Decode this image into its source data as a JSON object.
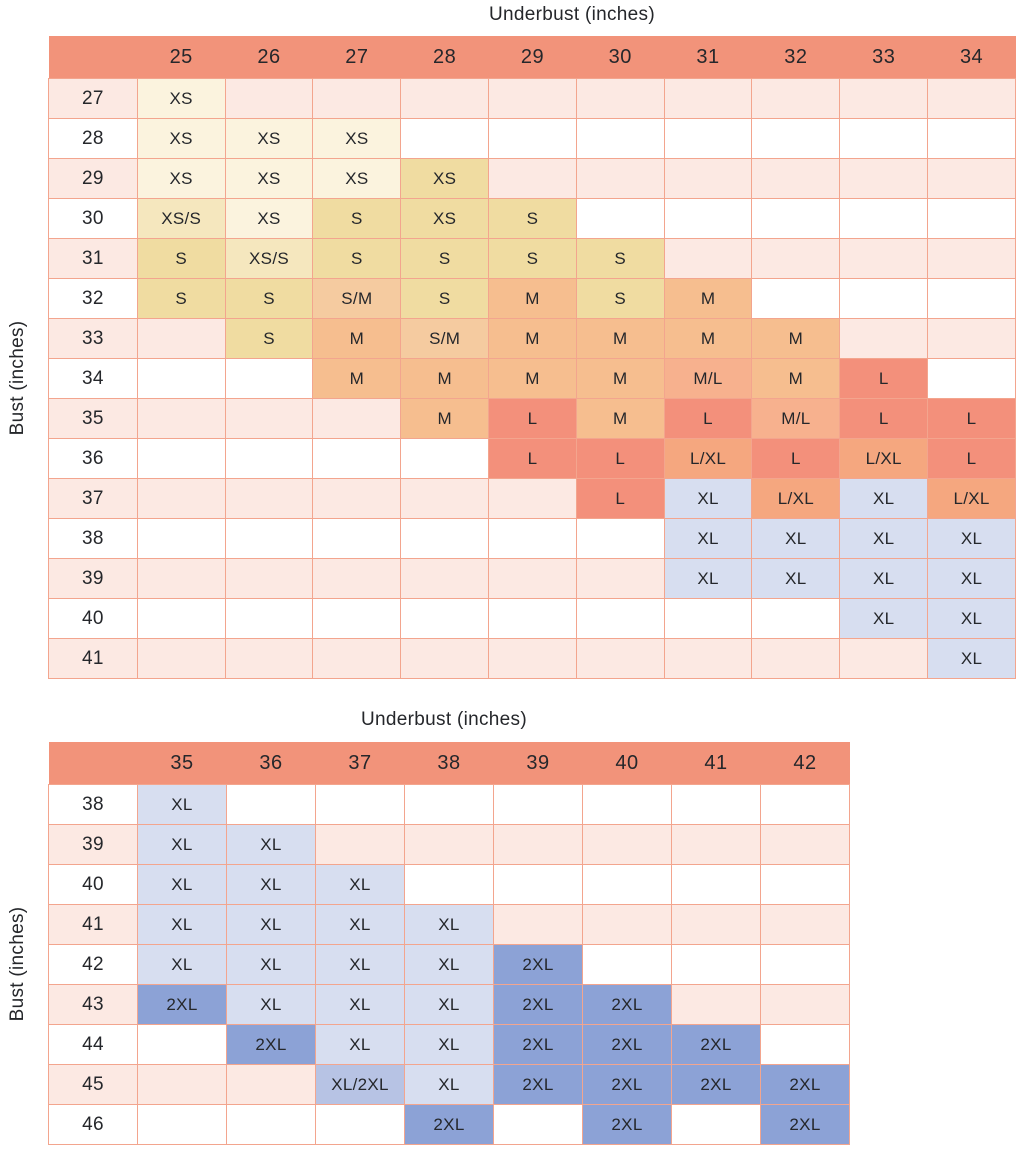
{
  "palette": {
    "page_bg": "#FFFFFF",
    "header_bg": "#F2937A",
    "grid_line": "#F3A58E",
    "stripe_pink": "#FCE9E3",
    "stripe_white": "#FFFFFF",
    "text": "#25272B",
    "size_colors": {
      "XS": "#FBF3DE",
      "XS/S": "#F5E7BE",
      "S": "#F0DCA1",
      "S/M": "#F5CBA0",
      "M": "#F6BE8F",
      "M/L": "#F7B18E",
      "L": "#F3907B",
      "L/XL": "#F5A77F",
      "XL": "#D7DEF0",
      "XL/2XL": "#B7C3E4",
      "2XL": "#8CA2D6"
    }
  },
  "chart_data": [
    {
      "type": "heatmap",
      "title": "Underbust (inches)",
      "xlabel": "Underbust (inches)",
      "ylabel": "Bust (inches)",
      "columns": [
        "25",
        "26",
        "27",
        "28",
        "29",
        "30",
        "31",
        "32",
        "33",
        "34"
      ],
      "rows": [
        {
          "bust": "27",
          "cells": [
            "XS",
            "",
            "",
            "",
            "",
            "",
            "",
            "",
            "",
            ""
          ]
        },
        {
          "bust": "28",
          "cells": [
            "XS",
            "XS",
            "XS",
            "",
            "",
            "",
            "",
            "",
            "",
            ""
          ]
        },
        {
          "bust": "29",
          "cells": [
            "XS",
            "XS",
            "XS",
            "XS",
            "",
            "",
            "",
            "",
            "",
            ""
          ]
        },
        {
          "bust": "30",
          "cells": [
            "XS/S",
            "XS",
            "S",
            "XS",
            "S",
            "",
            "",
            "",
            "",
            ""
          ]
        },
        {
          "bust": "31",
          "cells": [
            "S",
            "XS/S",
            "S",
            "S",
            "S",
            "S",
            "",
            "",
            "",
            ""
          ]
        },
        {
          "bust": "32",
          "cells": [
            "S",
            "S",
            "S/M",
            "S",
            "M",
            "S",
            "M",
            "",
            "",
            ""
          ]
        },
        {
          "bust": "33",
          "cells": [
            "",
            "S",
            "M",
            "S/M",
            "M",
            "M",
            "M",
            "M",
            "",
            ""
          ]
        },
        {
          "bust": "34",
          "cells": [
            "",
            "",
            "M",
            "M",
            "M",
            "M",
            "M/L",
            "M",
            "L",
            ""
          ]
        },
        {
          "bust": "35",
          "cells": [
            "",
            "",
            "",
            "M",
            "L",
            "M",
            "L",
            "M/L",
            "L",
            "L"
          ]
        },
        {
          "bust": "36",
          "cells": [
            "",
            "",
            "",
            "",
            "L",
            "L",
            "L/XL",
            "L",
            "L/XL",
            "L"
          ]
        },
        {
          "bust": "37",
          "cells": [
            "",
            "",
            "",
            "",
            "",
            "L",
            "XL",
            "L/XL",
            "XL",
            "L/XL"
          ]
        },
        {
          "bust": "38",
          "cells": [
            "",
            "",
            "",
            "",
            "",
            "",
            "XL",
            "XL",
            "XL",
            "XL"
          ]
        },
        {
          "bust": "39",
          "cells": [
            "",
            "",
            "",
            "",
            "",
            "",
            "XL",
            "XL",
            "XL",
            "XL"
          ]
        },
        {
          "bust": "40",
          "cells": [
            "",
            "",
            "",
            "",
            "",
            "",
            "",
            "",
            "XL",
            "XL"
          ]
        },
        {
          "bust": "41",
          "cells": [
            "",
            "",
            "",
            "",
            "",
            "",
            "",
            "",
            "",
            "XL"
          ]
        }
      ],
      "cell_color_overrides": {
        "2,3": "S",
        "3,3": "S"
      }
    },
    {
      "type": "heatmap",
      "title": "Underbust (inches)",
      "xlabel": "Underbust (inches)",
      "ylabel": "Bust (inches)",
      "columns": [
        "35",
        "36",
        "37",
        "38",
        "39",
        "40",
        "41",
        "42"
      ],
      "rows": [
        {
          "bust": "38",
          "cells": [
            "XL",
            "",
            "",
            "",
            "",
            "",
            "",
            ""
          ]
        },
        {
          "bust": "39",
          "cells": [
            "XL",
            "XL",
            "",
            "",
            "",
            "",
            "",
            ""
          ]
        },
        {
          "bust": "40",
          "cells": [
            "XL",
            "XL",
            "XL",
            "",
            "",
            "",
            "",
            ""
          ]
        },
        {
          "bust": "41",
          "cells": [
            "XL",
            "XL",
            "XL",
            "XL",
            "",
            "",
            "",
            ""
          ]
        },
        {
          "bust": "42",
          "cells": [
            "XL",
            "XL",
            "XL",
            "XL",
            "2XL",
            "",
            "",
            ""
          ]
        },
        {
          "bust": "43",
          "cells": [
            "2XL",
            "XL",
            "XL",
            "XL",
            "2XL",
            "2XL",
            "",
            ""
          ]
        },
        {
          "bust": "44",
          "cells": [
            "",
            "2XL",
            "XL",
            "XL",
            "2XL",
            "2XL",
            "2XL",
            ""
          ]
        },
        {
          "bust": "45",
          "cells": [
            "",
            "",
            "XL/2XL",
            "XL",
            "2XL",
            "2XL",
            "2XL",
            "2XL"
          ]
        },
        {
          "bust": "46",
          "cells": [
            "",
            "",
            "",
            "2XL",
            "",
            "2XL",
            "",
            "2XL"
          ]
        }
      ],
      "cell_color_overrides": {}
    }
  ]
}
